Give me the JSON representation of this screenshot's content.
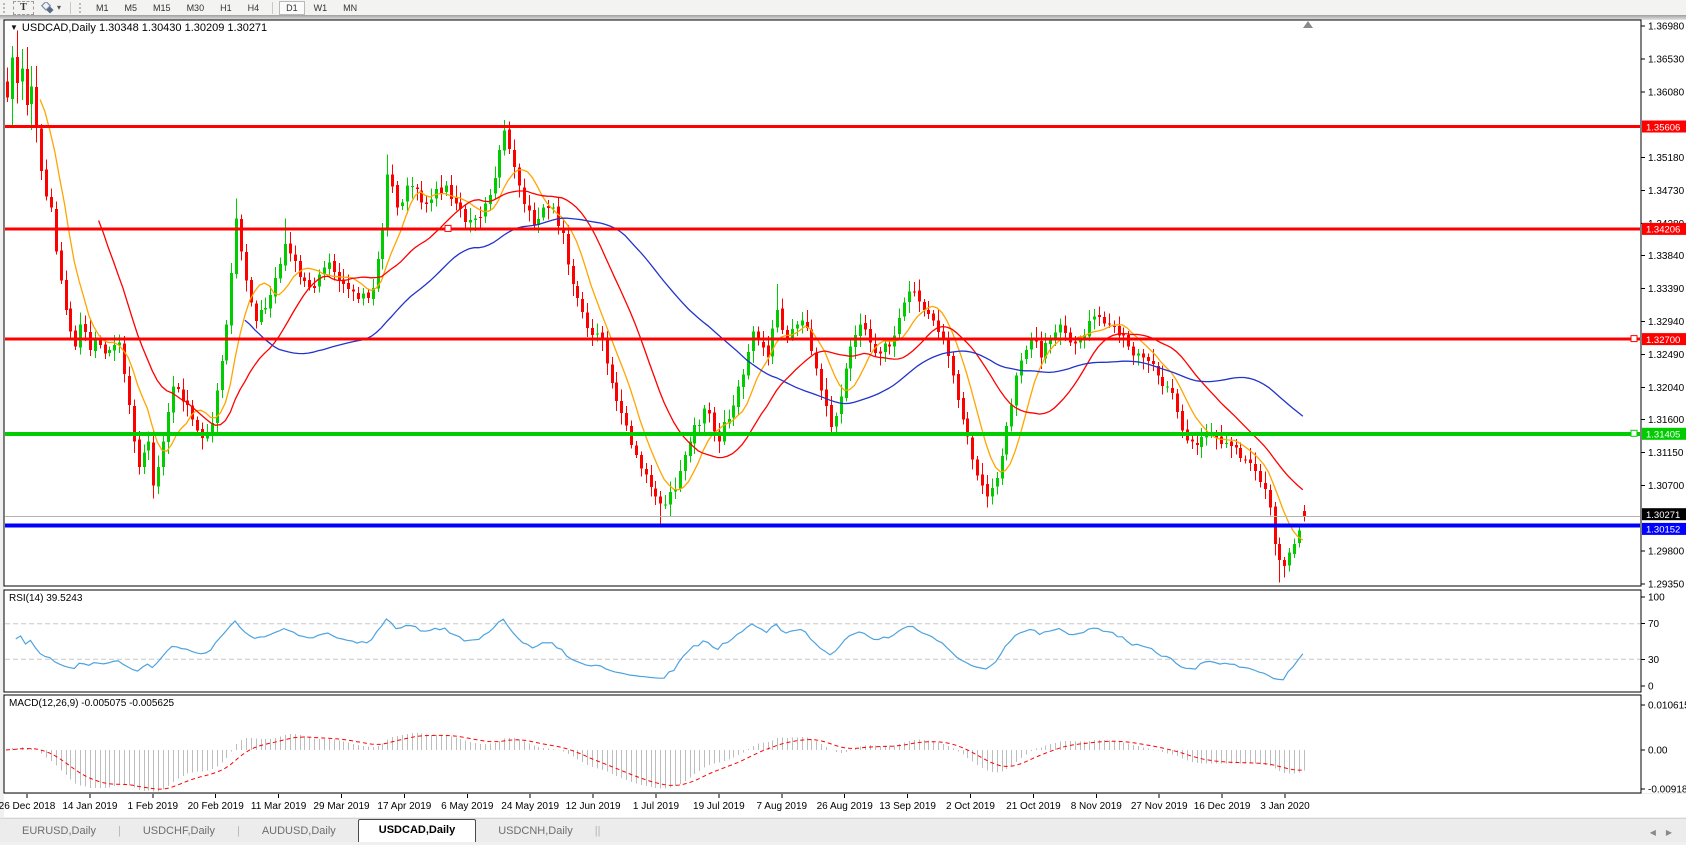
{
  "toolbar": {
    "text_tool": "T",
    "dropdown_icon": "▾",
    "timeframes": [
      "M1",
      "M5",
      "M15",
      "M30",
      "H1",
      "H4",
      "D1",
      "W1",
      "MN"
    ],
    "active_timeframe": "D1"
  },
  "window": {
    "dropdown_icon": "▼",
    "title": "USDCAD,Daily",
    "ohlc": "1.30348 1.30430 1.30209 1.30271"
  },
  "indicators": {
    "rsi_label": "RSI(14) 39.5243",
    "macd_label": "MACD(12,26,9) -0.005075 -0.005625"
  },
  "price_axis": [
    "1.36980",
    "1.36530",
    "1.36080",
    "1.35180",
    "1.34730",
    "1.34280",
    "1.33840",
    "1.33390",
    "1.32940",
    "1.32490",
    "1.32040",
    "1.31600",
    "1.31150",
    "1.30700",
    "1.29800",
    "1.29350"
  ],
  "rsi_axis": [
    {
      "label": "100",
      "value": 100
    },
    {
      "label": "70",
      "value": 70
    },
    {
      "label": "30",
      "value": 30
    },
    {
      "label": "0",
      "value": 0
    }
  ],
  "macd_axis": [
    {
      "label": "0.010615",
      "value": 0.010615
    },
    {
      "label": "0.00",
      "value": 0
    },
    {
      "label": "-0.009181",
      "value": -0.009181
    }
  ],
  "dates": [
    "26 Dec 2018",
    "14 Jan 2019",
    "1 Feb 2019",
    "20 Feb 2019",
    "11 Mar 2019",
    "29 Mar 2019",
    "17 Apr 2019",
    "6 May 2019",
    "24 May 2019",
    "12 Jun 2019",
    "1 Jul 2019",
    "19 Jul 2019",
    "7 Aug 2019",
    "26 Aug 2019",
    "13 Sep 2019",
    "2 Oct 2019",
    "21 Oct 2019",
    "8 Nov 2019",
    "27 Nov 2019",
    "16 Dec 2019",
    "3 Jan 2020"
  ],
  "hlines": [
    {
      "price": 1.35606,
      "label": "1.35606",
      "color": "#FF0000",
      "width": 3,
      "handles": []
    },
    {
      "price": 1.34206,
      "label": "1.34206",
      "color": "#FF0000",
      "width": 3,
      "handles": [
        448
      ]
    },
    {
      "price": 1.327,
      "label": "1.32700",
      "color": "#FF0000",
      "width": 3,
      "handles": [
        1634
      ]
    },
    {
      "price": 1.31405,
      "label": "1.31405",
      "color": "#00CC00",
      "width": 4,
      "handles": [
        1634
      ]
    },
    {
      "price": 1.30152,
      "label": "1.30152",
      "color": "#0000FF",
      "width": 4,
      "handles": []
    }
  ],
  "current_price": {
    "price": 1.30271,
    "label": "1.30271",
    "line_color": "#b4b4b4",
    "label_bg": "#000000"
  },
  "tabs": {
    "items": [
      "EURUSD,Daily",
      "USDCHF,Daily",
      "AUDUSD,Daily",
      "USDCAD,Daily",
      "USDCNH,Daily"
    ],
    "active": "USDCAD,Daily",
    "scroll_left_icon": "◀",
    "scroll_right_icon": "▶"
  },
  "chart_data": {
    "type": "candlestick",
    "symbol": "USDCAD",
    "timeframe": "Daily",
    "current_ohlc": {
      "open": 1.30348,
      "high": 1.3043,
      "low": 1.30209,
      "close": 1.30271
    },
    "price_range": [
      1.29324,
      1.37062
    ],
    "n_candles": 267,
    "seed": 42,
    "up_color": "#00CC00",
    "down_color": "#FF0000",
    "close_waypoints": [
      [
        0,
        1.36
      ],
      [
        1,
        1.3655
      ],
      [
        2,
        1.362
      ],
      [
        3,
        1.364
      ],
      [
        4,
        1.359
      ],
      [
        5,
        1.3615
      ],
      [
        6,
        1.356
      ],
      [
        7,
        1.35
      ],
      [
        8,
        1.3465
      ],
      [
        9,
        1.345
      ],
      [
        10,
        1.339
      ],
      [
        11,
        1.335
      ],
      [
        12,
        1.331
      ],
      [
        13,
        1.328
      ],
      [
        14,
        1.326
      ],
      [
        15,
        1.329
      ],
      [
        16,
        1.328
      ],
      [
        17,
        1.3255
      ],
      [
        18,
        1.327
      ],
      [
        20,
        1.325
      ],
      [
        22,
        1.3262
      ],
      [
        23,
        1.3265
      ],
      [
        24,
        1.3222
      ],
      [
        25,
        1.318
      ],
      [
        26,
        1.313
      ],
      [
        27,
        1.3095
      ],
      [
        28,
        1.3115
      ],
      [
        29,
        1.313
      ],
      [
        30,
        1.307
      ],
      [
        31,
        1.3095
      ],
      [
        32,
        1.313
      ],
      [
        33,
        1.317
      ],
      [
        34,
        1.3205
      ],
      [
        36,
        1.3185
      ],
      [
        37,
        1.318
      ],
      [
        38,
        1.316
      ],
      [
        39,
        1.3145
      ],
      [
        40,
        1.3135
      ],
      [
        41,
        1.314
      ],
      [
        42,
        1.3155
      ],
      [
        43,
        1.32
      ],
      [
        44,
        1.324
      ],
      [
        45,
        1.329
      ],
      [
        46,
        1.336
      ],
      [
        47,
        1.3435
      ],
      [
        48,
        1.339
      ],
      [
        49,
        1.335
      ],
      [
        50,
        1.332
      ],
      [
        51,
        1.3295
      ],
      [
        54,
        1.333
      ],
      [
        57,
        1.34
      ],
      [
        60,
        1.3355
      ],
      [
        63,
        1.334
      ],
      [
        66,
        1.3375
      ],
      [
        69,
        1.3345
      ],
      [
        72,
        1.3325
      ],
      [
        75,
        1.334
      ],
      [
        77,
        1.342
      ],
      [
        78,
        1.3495
      ],
      [
        80,
        1.345
      ],
      [
        82,
        1.348
      ],
      [
        84,
        1.3475
      ],
      [
        86,
        1.3455
      ],
      [
        88,
        1.3475
      ],
      [
        90,
        1.348
      ],
      [
        92,
        1.3455
      ],
      [
        94,
        1.343
      ],
      [
        96,
        1.3435
      ],
      [
        98,
        1.3455
      ],
      [
        100,
        1.349
      ],
      [
        102,
        1.3555
      ],
      [
        103,
        1.353
      ],
      [
        104,
        1.3505
      ],
      [
        106,
        1.3455
      ],
      [
        108,
        1.3425
      ],
      [
        110,
        1.345
      ],
      [
        112,
        1.345
      ],
      [
        114,
        1.3415
      ],
      [
        116,
        1.3345
      ],
      [
        119,
        1.3285
      ],
      [
        122,
        1.327
      ],
      [
        125,
        1.3185
      ],
      [
        128,
        1.3125
      ],
      [
        131,
        1.3085
      ],
      [
        134,
        1.3045
      ],
      [
        137,
        1.3065
      ],
      [
        140,
        1.313
      ],
      [
        143,
        1.3175
      ],
      [
        146,
        1.313
      ],
      [
        150,
        1.3205
      ],
      [
        153,
        1.328
      ],
      [
        156,
        1.3245
      ],
      [
        158,
        1.331
      ],
      [
        160,
        1.327
      ],
      [
        162,
        1.329
      ],
      [
        164,
        1.3285
      ],
      [
        166,
        1.323
      ],
      [
        167,
        1.32
      ],
      [
        169,
        1.315
      ],
      [
        170,
        1.3165
      ],
      [
        172,
        1.323
      ],
      [
        173,
        1.326
      ],
      [
        175,
        1.329
      ],
      [
        177,
        1.3265
      ],
      [
        179,
        1.325
      ],
      [
        181,
        1.326
      ],
      [
        182,
        1.3275
      ],
      [
        184,
        1.332
      ],
      [
        186,
        1.3335
      ],
      [
        188,
        1.331
      ],
      [
        190,
        1.3295
      ],
      [
        192,
        1.327
      ],
      [
        194,
        1.322
      ],
      [
        196,
        1.316
      ],
      [
        198,
        1.3105
      ],
      [
        200,
        1.307
      ],
      [
        201,
        1.3055
      ],
      [
        203,
        1.308
      ],
      [
        204,
        1.311
      ],
      [
        206,
        1.318
      ],
      [
        207,
        1.322
      ],
      [
        209,
        1.3255
      ],
      [
        210,
        1.327
      ],
      [
        212,
        1.3245
      ],
      [
        214,
        1.327
      ],
      [
        216,
        1.329
      ],
      [
        218,
        1.3265
      ],
      [
        220,
        1.327
      ],
      [
        222,
        1.3295
      ],
      [
        224,
        1.33
      ],
      [
        226,
        1.329
      ],
      [
        228,
        1.3275
      ],
      [
        230,
        1.326
      ],
      [
        232,
        1.325
      ],
      [
        234,
        1.324
      ],
      [
        236,
        1.322
      ],
      [
        238,
        1.3205
      ],
      [
        240,
        1.317
      ],
      [
        241,
        1.3145
      ],
      [
        243,
        1.313
      ],
      [
        244,
        1.3125
      ],
      [
        246,
        1.314
      ],
      [
        248,
        1.3135
      ],
      [
        250,
        1.3128
      ],
      [
        252,
        1.3122
      ],
      [
        254,
        1.3105
      ],
      [
        256,
        1.309
      ],
      [
        258,
        1.3065
      ],
      [
        259,
        1.304
      ],
      [
        260,
        1.299
      ],
      [
        261,
        1.2968
      ],
      [
        262,
        1.296
      ],
      [
        263,
        1.2978
      ],
      [
        264,
        1.299
      ],
      [
        265,
        1.3008
      ],
      [
        266,
        1.30271
      ]
    ],
    "extremes": [
      {
        "i": 1,
        "high": 1.3665
      },
      {
        "i": 30,
        "low": 1.3052
      },
      {
        "i": 47,
        "high": 1.3462
      },
      {
        "i": 57,
        "high": 1.3435
      },
      {
        "i": 78,
        "high": 1.3522
      },
      {
        "i": 102,
        "high": 1.3566
      },
      {
        "i": 134,
        "low": 1.3018
      },
      {
        "i": 158,
        "high": 1.3345
      },
      {
        "i": 201,
        "low": 1.3042
      },
      {
        "i": 261,
        "low": 1.2937
      }
    ],
    "moving_averages": [
      {
        "period": 8,
        "color": "#FFA500"
      },
      {
        "period": 20,
        "color": "#FF0000"
      },
      {
        "period": 50,
        "color": "#2233CC"
      }
    ],
    "rsi": {
      "period": 14,
      "current": 39.5243,
      "levels": [
        70,
        30
      ],
      "color": "#4DA3DF",
      "range": [
        0,
        100
      ],
      "level_color": "#c8c8c8"
    },
    "macd": {
      "fast": 12,
      "slow": 26,
      "signal": 9,
      "current_main": -0.005075,
      "current_signal": -0.005625,
      "histogram_color": "#BDBDBD",
      "signal_color": "#FF0000",
      "range": [
        -0.009181,
        0.010615
      ]
    }
  }
}
